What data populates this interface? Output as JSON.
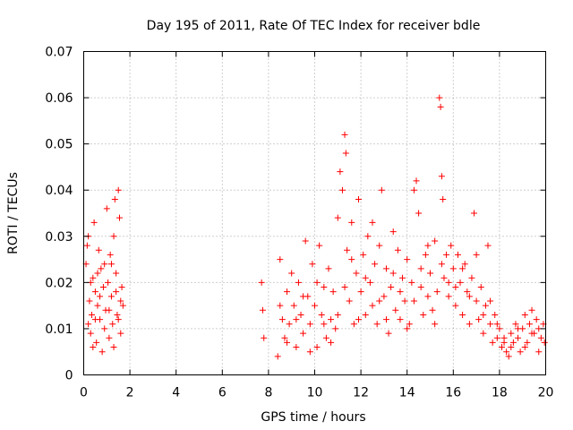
{
  "chart_data": {
    "type": "scatter",
    "title": "Day 195 of 2011, Rate Of TEC Index for receiver bdle",
    "xlabel": "GPS time / hours",
    "ylabel": "ROTI / TECUs",
    "xlim": [
      0,
      20
    ],
    "ylim": [
      0,
      0.07
    ],
    "grid": true,
    "marker": "plus",
    "color": "#ff0000",
    "x_ticks": [
      "0",
      "2",
      "4",
      "6",
      "8",
      "10",
      "12",
      "14",
      "16",
      "18",
      "20"
    ],
    "y_ticks": [
      "0",
      "0.01",
      "0.02",
      "0.03",
      "0.04",
      "0.05",
      "0.06",
      "0.07"
    ],
    "series": [
      {
        "name": "ROTI",
        "points": [
          [
            0.1,
            0.024
          ],
          [
            0.15,
            0.028
          ],
          [
            0.2,
            0.03
          ],
          [
            0.2,
            0.011
          ],
          [
            0.25,
            0.016
          ],
          [
            0.3,
            0.009
          ],
          [
            0.35,
            0.013
          ],
          [
            0.4,
            0.021
          ],
          [
            0.45,
            0.033
          ],
          [
            0.5,
            0.018
          ],
          [
            0.55,
            0.007
          ],
          [
            0.6,
            0.015
          ],
          [
            0.65,
            0.027
          ],
          [
            0.7,
            0.012
          ],
          [
            0.75,
            0.023
          ],
          [
            0.8,
            0.005
          ],
          [
            0.85,
            0.019
          ],
          [
            0.9,
            0.024
          ],
          [
            0.95,
            0.014
          ],
          [
            1.0,
            0.036
          ],
          [
            1.05,
            0.02
          ],
          [
            1.1,
            0.008
          ],
          [
            1.15,
            0.026
          ],
          [
            1.2,
            0.017
          ],
          [
            1.25,
            0.011
          ],
          [
            1.3,
            0.03
          ],
          [
            1.35,
            0.038
          ],
          [
            1.4,
            0.022
          ],
          [
            1.45,
            0.013
          ],
          [
            1.5,
            0.04
          ],
          [
            1.55,
            0.034
          ],
          [
            1.6,
            0.009
          ],
          [
            1.65,
            0.019
          ],
          [
            1.7,
            0.015
          ],
          [
            0.3,
            0.02
          ],
          [
            0.5,
            0.012
          ],
          [
            0.7,
            0.017
          ],
          [
            0.9,
            0.01
          ],
          [
            1.1,
            0.014
          ],
          [
            1.3,
            0.006
          ],
          [
            1.5,
            0.012
          ],
          [
            1.6,
            0.016
          ],
          [
            0.4,
            0.006
          ],
          [
            0.6,
            0.022
          ],
          [
            1.2,
            0.024
          ],
          [
            1.4,
            0.018
          ],
          [
            7.7,
            0.02
          ],
          [
            7.75,
            0.014
          ],
          [
            7.8,
            0.008
          ],
          [
            8.4,
            0.004
          ],
          [
            8.5,
            0.025
          ],
          [
            8.6,
            0.012
          ],
          [
            8.7,
            0.008
          ],
          [
            8.8,
            0.018
          ],
          [
            8.9,
            0.011
          ],
          [
            9.0,
            0.022
          ],
          [
            9.1,
            0.015
          ],
          [
            9.2,
            0.006
          ],
          [
            9.3,
            0.02
          ],
          [
            9.4,
            0.013
          ],
          [
            9.5,
            0.009
          ],
          [
            9.6,
            0.029
          ],
          [
            9.7,
            0.017
          ],
          [
            9.8,
            0.011
          ],
          [
            9.9,
            0.024
          ],
          [
            10.0,
            0.015
          ],
          [
            10.1,
            0.006
          ],
          [
            10.2,
            0.028
          ],
          [
            10.3,
            0.013
          ],
          [
            10.4,
            0.019
          ],
          [
            10.5,
            0.008
          ],
          [
            10.6,
            0.023
          ],
          [
            10.7,
            0.012
          ],
          [
            10.8,
            0.018
          ],
          [
            10.9,
            0.01
          ],
          [
            11.0,
            0.034
          ],
          [
            11.1,
            0.044
          ],
          [
            11.2,
            0.04
          ],
          [
            11.3,
            0.052
          ],
          [
            11.35,
            0.048
          ],
          [
            11.4,
            0.027
          ],
          [
            11.5,
            0.016
          ],
          [
            11.6,
            0.033
          ],
          [
            11.7,
            0.011
          ],
          [
            11.8,
            0.022
          ],
          [
            11.9,
            0.038
          ],
          [
            12.0,
            0.018
          ],
          [
            12.1,
            0.026
          ],
          [
            12.2,
            0.013
          ],
          [
            12.3,
            0.03
          ],
          [
            12.4,
            0.02
          ],
          [
            12.5,
            0.015
          ],
          [
            12.6,
            0.024
          ],
          [
            12.7,
            0.011
          ],
          [
            12.8,
            0.028
          ],
          [
            12.9,
            0.04
          ],
          [
            13.0,
            0.017
          ],
          [
            13.1,
            0.023
          ],
          [
            13.2,
            0.009
          ],
          [
            13.3,
            0.019
          ],
          [
            13.4,
            0.031
          ],
          [
            13.5,
            0.014
          ],
          [
            13.6,
            0.027
          ],
          [
            13.7,
            0.012
          ],
          [
            13.8,
            0.021
          ],
          [
            13.9,
            0.016
          ],
          [
            14.0,
            0.025
          ],
          [
            14.1,
            0.011
          ],
          [
            14.2,
            0.02
          ],
          [
            14.3,
            0.04
          ],
          [
            14.4,
            0.042
          ],
          [
            14.5,
            0.035
          ],
          [
            14.6,
            0.019
          ],
          [
            14.7,
            0.013
          ],
          [
            14.8,
            0.026
          ],
          [
            14.9,
            0.017
          ],
          [
            15.0,
            0.022
          ],
          [
            15.1,
            0.014
          ],
          [
            15.2,
            0.029
          ],
          [
            15.3,
            0.018
          ],
          [
            15.4,
            0.06
          ],
          [
            15.45,
            0.058
          ],
          [
            15.5,
            0.043
          ],
          [
            15.55,
            0.038
          ],
          [
            15.6,
            0.021
          ],
          [
            15.7,
            0.026
          ],
          [
            15.8,
            0.017
          ],
          [
            15.9,
            0.028
          ],
          [
            16.0,
            0.023
          ],
          [
            16.1,
            0.015
          ],
          [
            16.2,
            0.026
          ],
          [
            16.3,
            0.02
          ],
          [
            16.4,
            0.013
          ],
          [
            16.5,
            0.024
          ],
          [
            16.6,
            0.018
          ],
          [
            16.7,
            0.011
          ],
          [
            16.8,
            0.021
          ],
          [
            16.9,
            0.035
          ],
          [
            17.0,
            0.016
          ],
          [
            17.1,
            0.012
          ],
          [
            17.2,
            0.019
          ],
          [
            17.3,
            0.009
          ],
          [
            17.4,
            0.015
          ],
          [
            17.5,
            0.028
          ],
          [
            17.6,
            0.011
          ],
          [
            17.7,
            0.007
          ],
          [
            17.8,
            0.013
          ],
          [
            17.9,
            0.008
          ],
          [
            18.0,
            0.01
          ],
          [
            18.1,
            0.006
          ],
          [
            18.2,
            0.008
          ],
          [
            18.3,
            0.005
          ],
          [
            18.4,
            0.004
          ],
          [
            18.5,
            0.009
          ],
          [
            18.6,
            0.007
          ],
          [
            18.7,
            0.011
          ],
          [
            18.8,
            0.008
          ],
          [
            18.9,
            0.005
          ],
          [
            19.0,
            0.01
          ],
          [
            19.1,
            0.013
          ],
          [
            19.2,
            0.007
          ],
          [
            19.3,
            0.011
          ],
          [
            19.4,
            0.014
          ],
          [
            19.5,
            0.009
          ],
          [
            19.6,
            0.012
          ],
          [
            19.7,
            0.005
          ],
          [
            19.8,
            0.008
          ],
          [
            19.9,
            0.011
          ],
          [
            19.95,
            0.007
          ],
          [
            8.5,
            0.015
          ],
          [
            8.8,
            0.007
          ],
          [
            9.2,
            0.012
          ],
          [
            9.5,
            0.017
          ],
          [
            9.8,
            0.005
          ],
          [
            10.1,
            0.02
          ],
          [
            10.4,
            0.011
          ],
          [
            10.7,
            0.007
          ],
          [
            11.0,
            0.013
          ],
          [
            11.3,
            0.019
          ],
          [
            11.6,
            0.025
          ],
          [
            11.9,
            0.012
          ],
          [
            12.2,
            0.021
          ],
          [
            12.5,
            0.033
          ],
          [
            12.8,
            0.016
          ],
          [
            13.1,
            0.012
          ],
          [
            13.4,
            0.022
          ],
          [
            13.7,
            0.018
          ],
          [
            14.0,
            0.01
          ],
          [
            14.3,
            0.016
          ],
          [
            14.6,
            0.023
          ],
          [
            14.9,
            0.028
          ],
          [
            15.2,
            0.011
          ],
          [
            15.5,
            0.024
          ],
          [
            15.8,
            0.02
          ],
          [
            16.1,
            0.019
          ],
          [
            16.4,
            0.023
          ],
          [
            16.7,
            0.017
          ],
          [
            17.0,
            0.026
          ],
          [
            17.3,
            0.013
          ],
          [
            17.6,
            0.016
          ],
          [
            17.9,
            0.011
          ],
          [
            18.2,
            0.007
          ],
          [
            18.5,
            0.006
          ],
          [
            18.8,
            0.01
          ],
          [
            19.1,
            0.006
          ],
          [
            19.4,
            0.009
          ],
          [
            19.7,
            0.01
          ]
        ]
      }
    ]
  }
}
